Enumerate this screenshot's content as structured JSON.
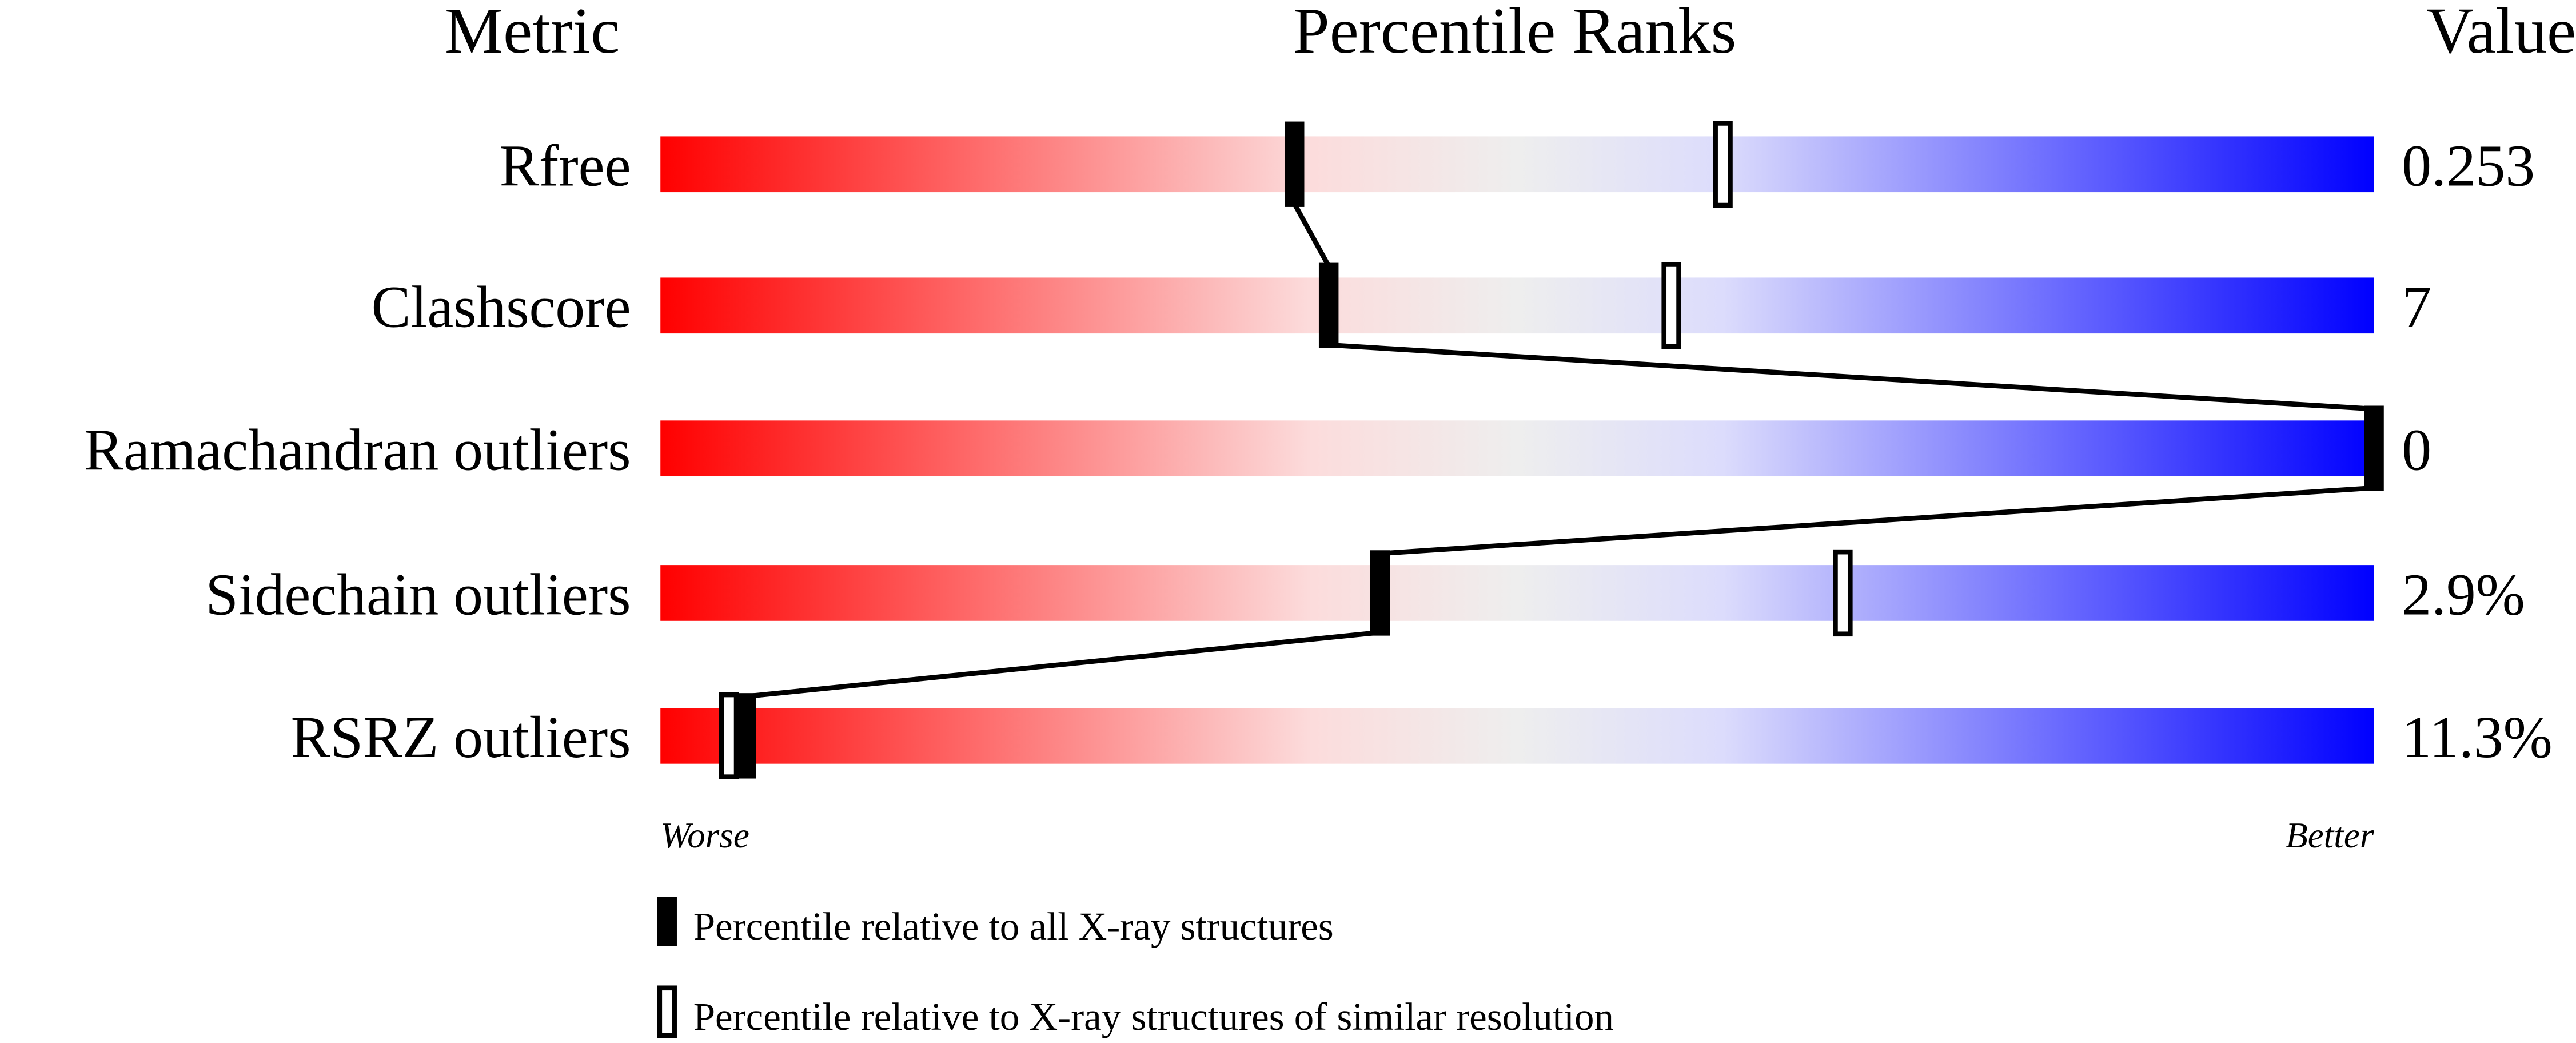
{
  "chart_data": {
    "type": "bar",
    "headers": {
      "metric": "Metric",
      "ranks": "Percentile Ranks",
      "value": "Value"
    },
    "xlim": [
      0,
      100
    ],
    "axis_labels": {
      "left": "Worse",
      "right": "Better"
    },
    "gradient_colors": [
      "#ff0000",
      "#fcdcdc",
      "#eeeeee",
      "#dcdcfc",
      "#0000ff"
    ],
    "rows": [
      {
        "metric": "Rfree",
        "value": "0.253",
        "percentile_all": 37,
        "percentile_similar": 62
      },
      {
        "metric": "Clashscore",
        "value": "7",
        "percentile_all": 39,
        "percentile_similar": 59
      },
      {
        "metric": "Ramachandran outliers",
        "value": "0",
        "percentile_all": 100,
        "percentile_similar": null
      },
      {
        "metric": "Sidechain outliers",
        "value": "2.9%",
        "percentile_all": 42,
        "percentile_similar": 69
      },
      {
        "metric": "RSRZ outliers",
        "value": "11.3%",
        "percentile_all": 5,
        "percentile_similar": 4
      }
    ],
    "legend": [
      {
        "marker": "filled",
        "label": "Percentile relative to all X-ray structures"
      },
      {
        "marker": "open",
        "label": "Percentile relative to X-ray structures of similar resolution"
      }
    ]
  }
}
